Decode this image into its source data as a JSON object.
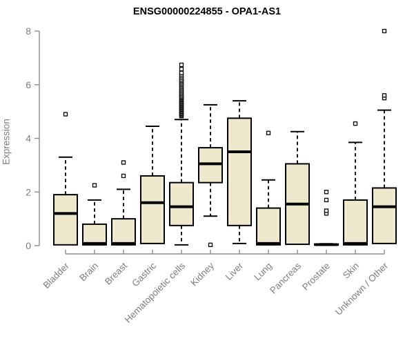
{
  "chart_data": {
    "type": "boxplot",
    "title": "ENSG00000224855 - OPA1-AS1",
    "xlabel": "",
    "ylabel": "Expression",
    "ylim": [
      0,
      8
    ],
    "yticks": [
      0,
      2,
      4,
      6,
      8
    ],
    "grid": false,
    "legend": false,
    "colors": {
      "box_fill": "#EEE8CD",
      "box_stroke": "#000000",
      "median": "#000000",
      "whisker": "#000000",
      "outlier_stroke": "#000000",
      "outlier_fill": "#ffffff",
      "axis_line": "#8c8c8c",
      "axis_text": "#7d7d7d",
      "title_text": "#000000",
      "background": "#ffffff"
    },
    "categories": [
      "Bladder",
      "Brain",
      "Breast",
      "Gastric",
      "Hematopoietic cells",
      "Kidney",
      "Liver",
      "Lung",
      "Pancreas",
      "Prostate",
      "Skin",
      "Unknown / Other"
    ],
    "series": [
      {
        "category": "Bladder",
        "whisker_low": 0.03,
        "q1": 0.03,
        "median": 1.2,
        "q3": 1.9,
        "whisker_high": 3.3,
        "outliers": [
          4.9
        ]
      },
      {
        "category": "Brain",
        "whisker_low": 0.03,
        "q1": 0.03,
        "median": 0.08,
        "q3": 0.8,
        "whisker_high": 1.7,
        "outliers": [
          2.25
        ]
      },
      {
        "category": "Breast",
        "whisker_low": 0.03,
        "q1": 0.03,
        "median": 0.08,
        "q3": 1.0,
        "whisker_high": 2.1,
        "outliers": [
          2.6,
          3.1
        ]
      },
      {
        "category": "Gastric",
        "whisker_low": 0.08,
        "q1": 0.08,
        "median": 1.6,
        "q3": 2.6,
        "whisker_high": 4.45,
        "outliers": []
      },
      {
        "category": "Hematopoietic cells",
        "whisker_low": 0.03,
        "q1": 0.75,
        "median": 1.45,
        "q3": 2.35,
        "whisker_high": 4.7,
        "outliers": [
          4.83,
          4.87,
          4.91,
          4.95,
          4.99,
          5.03,
          5.07,
          5.11,
          5.15,
          5.19,
          5.23,
          5.27,
          5.31,
          5.35,
          5.39,
          5.43,
          5.47,
          5.51,
          5.55,
          5.6,
          5.65,
          5.7,
          5.75,
          5.8,
          5.85,
          5.9,
          5.95,
          6.0,
          6.05,
          6.1,
          6.15,
          6.2,
          6.26,
          6.32,
          6.38,
          6.44,
          6.58,
          6.74
        ]
      },
      {
        "category": "Kidney",
        "whisker_low": 1.1,
        "q1": 2.35,
        "median": 3.05,
        "q3": 3.65,
        "whisker_high": 5.25,
        "outliers": [
          0.03
        ]
      },
      {
        "category": "Liver",
        "whisker_low": 0.08,
        "q1": 0.75,
        "median": 3.5,
        "q3": 4.75,
        "whisker_high": 5.4,
        "outliers": []
      },
      {
        "category": "Lung",
        "whisker_low": 0.03,
        "q1": 0.03,
        "median": 0.08,
        "q3": 1.4,
        "whisker_high": 2.45,
        "outliers": [
          4.2
        ]
      },
      {
        "category": "Pancreas",
        "whisker_low": 0.05,
        "q1": 0.05,
        "median": 1.55,
        "q3": 3.05,
        "whisker_high": 4.25,
        "outliers": []
      },
      {
        "category": "Prostate",
        "whisker_low": 0.02,
        "q1": 0.02,
        "median": 0.04,
        "q3": 0.06,
        "whisker_high": 0.07,
        "outliers": [
          1.2,
          1.3,
          1.7,
          2.0
        ]
      },
      {
        "category": "Skin",
        "whisker_low": 0.03,
        "q1": 0.03,
        "median": 0.08,
        "q3": 1.7,
        "whisker_high": 3.85,
        "outliers": [
          4.55
        ]
      },
      {
        "category": "Unknown / Other",
        "whisker_low": 0.08,
        "q1": 0.08,
        "median": 1.45,
        "q3": 2.15,
        "whisker_high": 5.05,
        "outliers": [
          5.5,
          5.6,
          8.0
        ]
      }
    ]
  }
}
